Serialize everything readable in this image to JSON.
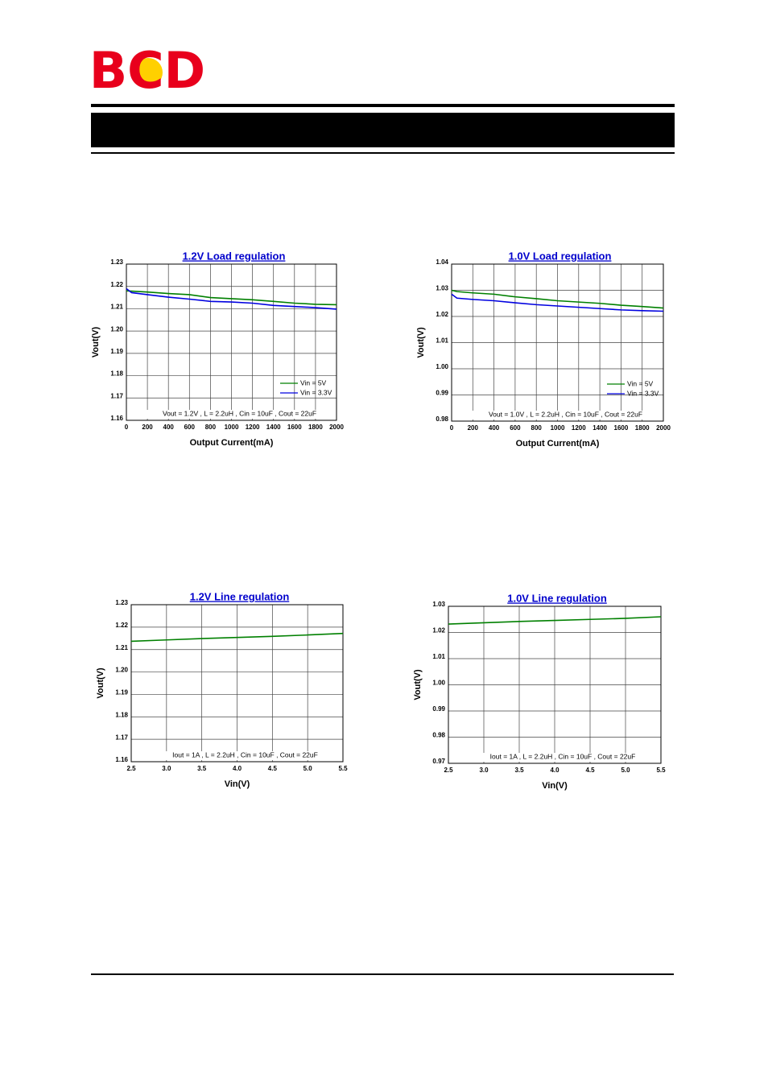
{
  "logo": "BCD",
  "chart_data": [
    {
      "type": "line",
      "title": "1.2V Load regulation",
      "xlabel": "Output Current(mA)",
      "ylabel": "Vout(V)",
      "annotation": "Vout = 1.2V , L = 2.2uH , Cin = 10uF , Cout = 22uF",
      "x": [
        0,
        50,
        200,
        400,
        600,
        800,
        1000,
        1200,
        1400,
        1600,
        1800,
        2000
      ],
      "series": [
        {
          "name": "Vin = 5V",
          "color": "#008000",
          "values": [
            1.218,
            1.2179,
            1.2175,
            1.2168,
            1.2163,
            1.215,
            1.2145,
            1.214,
            1.2133,
            1.2125,
            1.212,
            1.2118
          ]
        },
        {
          "name": "Vin = 3.3V",
          "color": "#0000e0",
          "values": [
            1.219,
            1.2172,
            1.2163,
            1.2152,
            1.2143,
            1.2133,
            1.213,
            1.2125,
            1.2115,
            1.211,
            1.2105,
            1.2098
          ]
        }
      ],
      "xlim": [
        0,
        2000
      ],
      "ylim": [
        1.16,
        1.23
      ],
      "xticks": [
        0,
        200,
        400,
        600,
        800,
        1000,
        1200,
        1400,
        1600,
        1800,
        2000
      ],
      "yticks": [
        1.16,
        1.17,
        1.18,
        1.19,
        {
          "value": 1.2,
          "label": "1.20"
        },
        1.21,
        1.22,
        1.23
      ],
      "grid": true,
      "legend": "lower right"
    },
    {
      "type": "line",
      "title": "1.0V Load regulation",
      "xlabel": "Output Current(mA)",
      "ylabel": "Vout(V)",
      "annotation": "Vout = 1.0V , L = 2.2uH , Cin = 10uF , Cout = 22uF",
      "x": [
        0,
        50,
        200,
        400,
        600,
        800,
        1000,
        1200,
        1400,
        1600,
        1800,
        2000
      ],
      "series": [
        {
          "name": "Vin = 5V",
          "color": "#008000",
          "values": [
            1.03,
            1.0295,
            1.029,
            1.0285,
            1.0275,
            1.0268,
            1.026,
            1.0255,
            1.025,
            1.0243,
            1.0238,
            1.0232
          ]
        },
        {
          "name": "Vin = 3.3V",
          "color": "#0000e0",
          "values": [
            1.0285,
            1.027,
            1.0265,
            1.026,
            1.0252,
            1.0245,
            1.024,
            1.0235,
            1.023,
            1.0225,
            1.0222,
            1.022
          ]
        }
      ],
      "xlim": [
        0,
        2000
      ],
      "ylim": [
        0.98,
        1.04
      ],
      "xticks": [
        0,
        200,
        400,
        600,
        800,
        1000,
        1200,
        1400,
        1600,
        1800,
        2000
      ],
      "yticks": [
        0.98,
        0.99,
        {
          "value": 1,
          "label": "1.00"
        },
        1.01,
        1.02,
        1.03,
        1.04
      ],
      "grid": true,
      "legend": "lower right"
    },
    {
      "type": "line",
      "title": "1.2V Line regulation",
      "xlabel": "Vin(V)",
      "ylabel": "Vout(V)",
      "annotation": "Iout = 1A , L = 2.2uH , Cin = 10uF , Cout = 22uF",
      "x": [
        2.5,
        3,
        3.5,
        4,
        4.5,
        5,
        5.5
      ],
      "series": [
        {
          "color": "#008000",
          "values": [
            1.2137,
            1.2143,
            1.2149,
            1.2154,
            1.2159,
            1.2165,
            1.2172
          ]
        }
      ],
      "xlim": [
        2.5,
        5.5
      ],
      "ylim": [
        1.16,
        1.23
      ],
      "xticks": [
        2.5,
        {
          "value": 3,
          "label": "3.0"
        },
        3.5,
        {
          "value": 4,
          "label": "4.0"
        },
        4.5,
        {
          "value": 5,
          "label": "5.0"
        },
        5.5
      ],
      "yticks": [
        1.16,
        1.17,
        1.18,
        1.19,
        {
          "value": 1.2,
          "label": "1.20"
        },
        1.21,
        1.22,
        1.23
      ],
      "grid": true
    },
    {
      "type": "line",
      "title": "1.0V Line regulation",
      "xlabel": "Vin(V)",
      "ylabel": "Vout(V)",
      "annotation": "Iout = 1A , L = 2.2uH , Cin = 10uF , Cout = 22uF",
      "x": [
        2.5,
        3,
        3.5,
        4,
        4.5,
        5,
        5.5
      ],
      "series": [
        {
          "color": "#008000",
          "values": [
            1.0232,
            1.0237,
            1.0242,
            1.0246,
            1.025,
            1.0254,
            1.026
          ]
        }
      ],
      "xlim": [
        2.5,
        5.5
      ],
      "ylim": [
        0.97,
        1.03
      ],
      "xticks": [
        2.5,
        {
          "value": 3,
          "label": "3.0"
        },
        3.5,
        {
          "value": 4,
          "label": "4.0"
        },
        4.5,
        {
          "value": 5,
          "label": "5.0"
        },
        5.5
      ],
      "yticks": [
        0.97,
        0.98,
        0.99,
        {
          "value": 1,
          "label": "1.00"
        },
        1.01,
        1.02,
        1.03
      ],
      "grid": true
    }
  ]
}
